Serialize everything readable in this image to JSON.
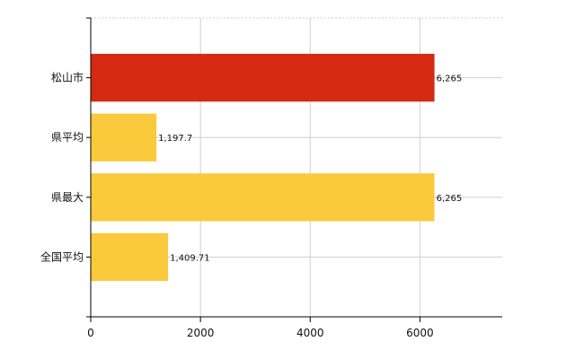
{
  "chart_data": {
    "type": "bar",
    "orientation": "horizontal",
    "categories": [
      "松山市",
      "県平均",
      "県最大",
      "全国平均"
    ],
    "values": [
      6265,
      1197.7,
      6265,
      1409.71
    ],
    "value_labels": [
      "6,265",
      "1,197.7",
      "6,265",
      "1,409.71"
    ],
    "bar_colors": [
      "#d42a14",
      "#fbc93c",
      "#fbc93c",
      "#fbc93c"
    ],
    "x_ticks": [
      0,
      2000,
      4000,
      6000
    ],
    "x_tick_labels": [
      "0",
      "2000",
      "4000",
      "6000"
    ],
    "xlim": [
      0,
      7500
    ],
    "grid": true,
    "title": "",
    "xlabel": "",
    "ylabel": ""
  }
}
